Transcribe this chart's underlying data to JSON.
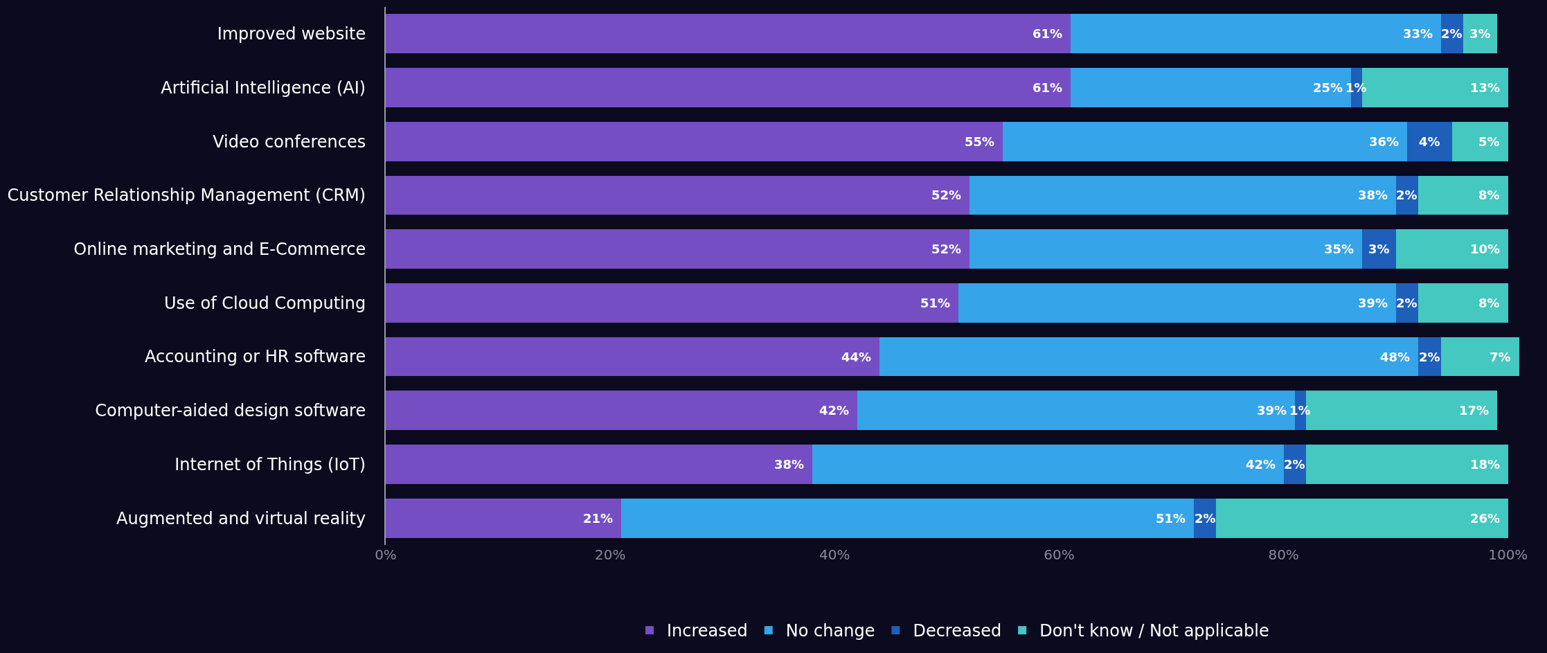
{
  "chart_data": {
    "type": "bar",
    "orientation": "horizontal",
    "stacked": true,
    "legend": "bottom",
    "grid": false,
    "categories": [
      "Improved website",
      "Artificial Intelligence (AI)",
      "Video conferences",
      "Customer Relationship Management (CRM)",
      "Online marketing and E-Commerce",
      "Use of Cloud Computing",
      "Accounting or HR software",
      "Computer-aided design software",
      "Internet of Things (IoT)",
      "Augmented and virtual reality"
    ],
    "series": [
      {
        "name": "Increased",
        "color": "#744ec2",
        "values": [
          61,
          61,
          55,
          52,
          52,
          51,
          44,
          42,
          38,
          21
        ],
        "value_labels": [
          "61%",
          "61%",
          "55%",
          "52%",
          "52%",
          "51%",
          "44%",
          "42%",
          "38%",
          "21%"
        ]
      },
      {
        "name": "No change",
        "color": "#35a4e8",
        "values": [
          33,
          25,
          36,
          38,
          35,
          39,
          48,
          39,
          42,
          51
        ],
        "value_labels": [
          "33%",
          "25%",
          "36%",
          "38%",
          "35%",
          "39%",
          "48%",
          "39%",
          "42%",
          "51%"
        ]
      },
      {
        "name": "Decreased",
        "color": "#1e5fba",
        "values": [
          2,
          1,
          4,
          2,
          3,
          2,
          2,
          1,
          2,
          2
        ],
        "value_labels": [
          "2%",
          "1%",
          "4%",
          "2%",
          "3%",
          "2%",
          "2%",
          "1%",
          "2%",
          "2%"
        ]
      },
      {
        "name": "Don't know / Not applicable",
        "color": "#44c8c0",
        "values": [
          3,
          13,
          5,
          8,
          10,
          8,
          7,
          17,
          18,
          26
        ],
        "value_labels": [
          "3%",
          "13%",
          "5%",
          "8%",
          "10%",
          "8%",
          "7%",
          "17%",
          "18%",
          "26%"
        ]
      }
    ],
    "xlim": [
      0,
      101
    ],
    "xticks": [
      {
        "value": 0,
        "label": "0%"
      },
      {
        "value": 20,
        "label": "20%"
      },
      {
        "value": 40,
        "label": "40%"
      },
      {
        "value": 60,
        "label": "60%"
      },
      {
        "value": 80,
        "label": "80%"
      },
      {
        "value": 100,
        "label": "100%"
      }
    ]
  }
}
